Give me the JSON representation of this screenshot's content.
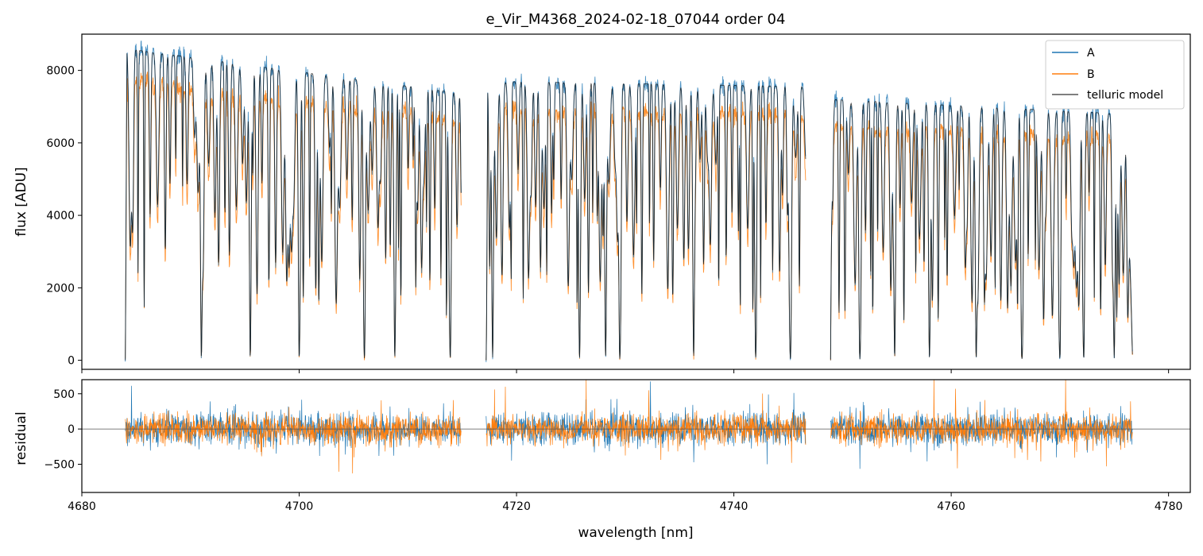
{
  "chart_data": [
    {
      "type": "line",
      "title": "e_Vir_M4368_2024-02-18_07044  order 04",
      "ylabel": "flux [ADU]",
      "xlabel": "",
      "xlim": [
        4680,
        4782
      ],
      "ylim": [
        -250,
        9000
      ],
      "yticks": [
        0,
        2000,
        4000,
        6000,
        8000
      ],
      "ytick_labels": [
        "0",
        "2000",
        "4000",
        "6000",
        "8000"
      ],
      "legend": {
        "position": "top-right",
        "entries": [
          "A",
          "B",
          "telluric model"
        ]
      },
      "series": [
        {
          "name": "A",
          "color": "#1f77b4"
        },
        {
          "name": "B",
          "color": "#ff7f0e"
        },
        {
          "name": "telluric model",
          "color": "#000000"
        }
      ],
      "segments": [
        {
          "start": 4684.0,
          "end": 4714.9,
          "continuum": 8600,
          "slope": -40
        },
        {
          "start": 4717.2,
          "end": 4746.6,
          "continuum": 7700,
          "slope": -5
        },
        {
          "start": 4748.9,
          "end": 4776.7,
          "continuum": 7200,
          "slope": -15
        }
      ],
      "strong_lines": [
        4691.0,
        4695.5,
        4700.0,
        4706.0,
        4708.8,
        4713.9,
        4717.8,
        4725.8,
        4728.2,
        4729.5,
        4736.3,
        4742.0,
        4745.2,
        4751.6,
        4754.8,
        4758.0,
        4762.3,
        4766.5,
        4770.0,
        4772.2,
        4775.0
      ]
    },
    {
      "type": "line",
      "ylabel": "residual",
      "xlabel": "wavelength [nm]",
      "xlim": [
        4680,
        4782
      ],
      "ylim": [
        -900,
        700
      ],
      "yticks": [
        -500,
        0,
        500
      ],
      "ytick_labels": [
        "−500",
        "0",
        "500"
      ],
      "xticks": [
        4680,
        4700,
        4720,
        4740,
        4760,
        4780
      ],
      "xtick_labels": [
        "4680",
        "4700",
        "4720",
        "4740",
        "4760",
        "4780"
      ],
      "zero_line": 0,
      "series": [
        {
          "name": "A",
          "color": "#1f77b4"
        },
        {
          "name": "B",
          "color": "#ff7f0e"
        }
      ]
    }
  ]
}
